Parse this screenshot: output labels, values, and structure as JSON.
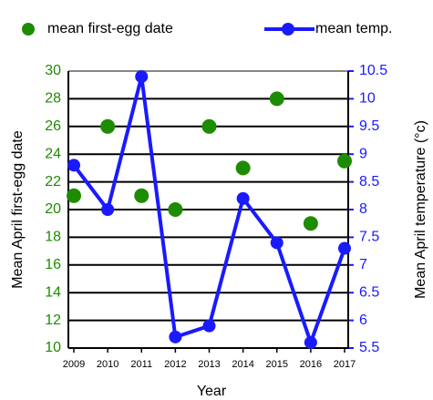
{
  "chart_data": {
    "type": "combo",
    "x_label": "Year",
    "y_label": "Mean April first-egg date",
    "y2_label": "Mean April temperature (°c)",
    "x": [
      2009,
      2010,
      2011,
      2012,
      2013,
      2014,
      2015,
      2016,
      2017
    ],
    "xlim": [
      2009,
      2017
    ],
    "xticks": [
      2009,
      2010,
      2011,
      2012,
      2013,
      2014,
      2015,
      2016,
      2017
    ],
    "ylim": [
      10,
      30
    ],
    "yticks": [
      10,
      12,
      14,
      16,
      18,
      20,
      22,
      24,
      26,
      28,
      30
    ],
    "y2lim": [
      5.5,
      10.5
    ],
    "y2ticks": [
      5.5,
      6,
      6.5,
      7,
      7.5,
      8,
      8.5,
      9,
      9.5,
      10,
      10.5
    ],
    "grid": true,
    "series": [
      {
        "name": "mean first-egg date",
        "type": "scatter",
        "color": "#1e8c00",
        "axis": "y",
        "values": [
          21,
          26,
          21,
          20,
          26,
          23,
          28,
          19,
          23.5
        ]
      },
      {
        "name": "mean temp.",
        "type": "line",
        "color": "#1a1aff",
        "axis": "y2",
        "values": [
          8.8,
          8.0,
          10.4,
          5.7,
          5.9,
          8.2,
          7.4,
          5.6,
          7.3
        ]
      }
    ]
  }
}
